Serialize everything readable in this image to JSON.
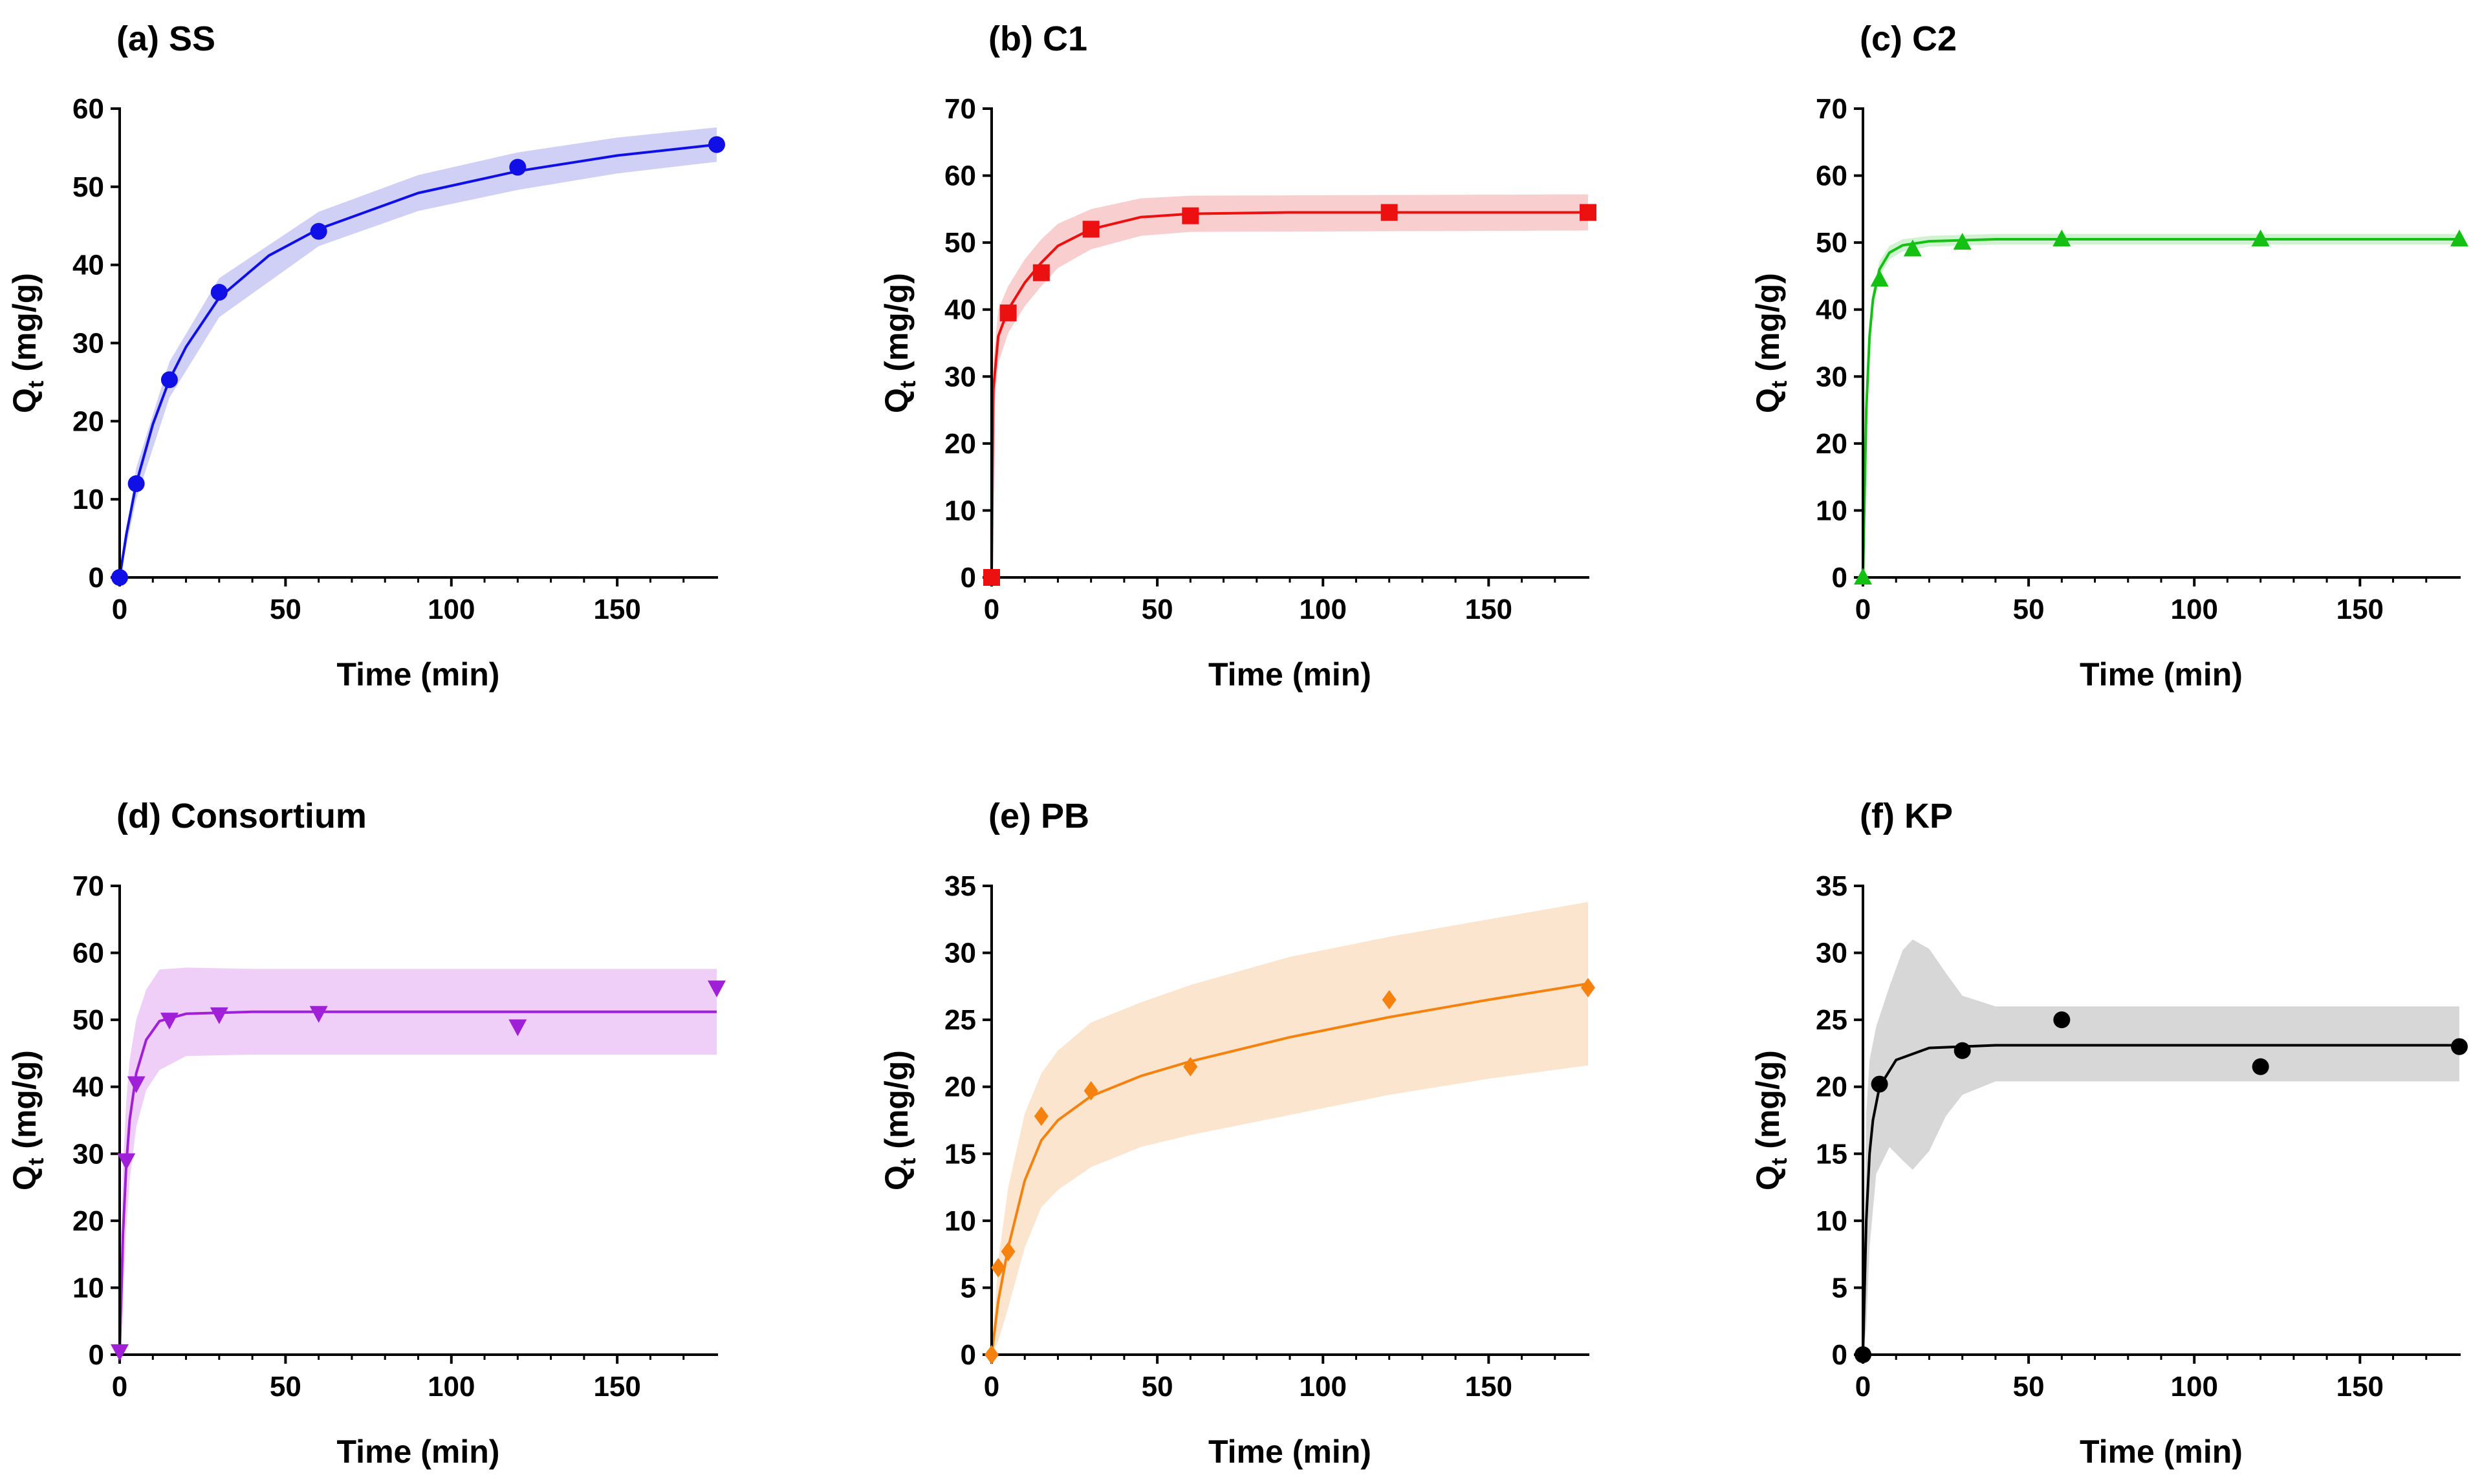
{
  "chart_data": [
    {
      "type": "scatter",
      "title": "(a) SS",
      "xlabel": "Time (min)",
      "ylabel_main": "Q",
      "ylabel_sub": "t",
      "ylabel_unit": "(mg/g)",
      "xlim": [
        0,
        180
      ],
      "ylim": [
        0,
        60
      ],
      "xticks": [
        0,
        50,
        100,
        150
      ],
      "yticks": [
        0,
        10,
        20,
        30,
        40,
        50,
        60
      ],
      "color": "#1010e6",
      "band_color": "#c8c8f6",
      "marker": "circle",
      "points": [
        {
          "x": 0,
          "y": 0
        },
        {
          "x": 5,
          "y": 12.0
        },
        {
          "x": 15,
          "y": 25.3
        },
        {
          "x": 30,
          "y": 36.5
        },
        {
          "x": 60,
          "y": 44.3
        },
        {
          "x": 120,
          "y": 52.5
        },
        {
          "x": 180,
          "y": 55.4
        }
      ],
      "fit": [
        {
          "x": 0,
          "y": 0
        },
        {
          "x": 2,
          "y": 5.5
        },
        {
          "x": 5,
          "y": 12.0
        },
        {
          "x": 10,
          "y": 19.6
        },
        {
          "x": 15,
          "y": 25.3
        },
        {
          "x": 20,
          "y": 29.5
        },
        {
          "x": 30,
          "y": 35.8
        },
        {
          "x": 45,
          "y": 41.2
        },
        {
          "x": 60,
          "y": 44.6
        },
        {
          "x": 90,
          "y": 49.2
        },
        {
          "x": 120,
          "y": 52.0
        },
        {
          "x": 150,
          "y": 54.0
        },
        {
          "x": 180,
          "y": 55.4
        }
      ],
      "band_upper": [
        {
          "x": 0,
          "y": 0
        },
        {
          "x": 5,
          "y": 14.0
        },
        {
          "x": 15,
          "y": 27.6
        },
        {
          "x": 30,
          "y": 38.3
        },
        {
          "x": 60,
          "y": 46.8
        },
        {
          "x": 90,
          "y": 51.5
        },
        {
          "x": 120,
          "y": 54.4
        },
        {
          "x": 150,
          "y": 56.3
        },
        {
          "x": 180,
          "y": 57.6
        }
      ],
      "band_lower": [
        {
          "x": 0,
          "y": 0
        },
        {
          "x": 5,
          "y": 10.0
        },
        {
          "x": 15,
          "y": 23.0
        },
        {
          "x": 30,
          "y": 33.3
        },
        {
          "x": 60,
          "y": 42.4
        },
        {
          "x": 90,
          "y": 46.9
        },
        {
          "x": 120,
          "y": 49.6
        },
        {
          "x": 150,
          "y": 51.7
        },
        {
          "x": 180,
          "y": 53.2
        }
      ]
    },
    {
      "type": "scatter",
      "title": "(b) C1",
      "xlabel": "Time (min)",
      "ylabel_main": "Q",
      "ylabel_sub": "t",
      "ylabel_unit": "(mg/g)",
      "xlim": [
        0,
        180
      ],
      "ylim": [
        0,
        70
      ],
      "xticks": [
        0,
        50,
        100,
        150
      ],
      "yticks": [
        0,
        10,
        20,
        30,
        40,
        50,
        60,
        70
      ],
      "color": "#ec1010",
      "band_color": "#f8c6c6",
      "marker": "square",
      "points": [
        {
          "x": 0,
          "y": 0
        },
        {
          "x": 5,
          "y": 39.5
        },
        {
          "x": 15,
          "y": 45.5
        },
        {
          "x": 30,
          "y": 52.0
        },
        {
          "x": 60,
          "y": 54.0
        },
        {
          "x": 120,
          "y": 54.5
        },
        {
          "x": 180,
          "y": 54.5
        }
      ],
      "fit": [
        {
          "x": 0,
          "y": 0
        },
        {
          "x": 0.5,
          "y": 28.0
        },
        {
          "x": 2,
          "y": 36.0
        },
        {
          "x": 5,
          "y": 40.0
        },
        {
          "x": 10,
          "y": 44.0
        },
        {
          "x": 15,
          "y": 47.0
        },
        {
          "x": 20,
          "y": 49.5
        },
        {
          "x": 30,
          "y": 52.0
        },
        {
          "x": 45,
          "y": 53.8
        },
        {
          "x": 60,
          "y": 54.3
        },
        {
          "x": 90,
          "y": 54.5
        },
        {
          "x": 180,
          "y": 54.5
        }
      ],
      "band_upper": [
        {
          "x": 0,
          "y": 0
        },
        {
          "x": 0.5,
          "y": 32.0
        },
        {
          "x": 2,
          "y": 40.0
        },
        {
          "x": 5,
          "y": 43.5
        },
        {
          "x": 10,
          "y": 47.5
        },
        {
          "x": 15,
          "y": 50.5
        },
        {
          "x": 20,
          "y": 52.8
        },
        {
          "x": 30,
          "y": 55.0
        },
        {
          "x": 45,
          "y": 56.6
        },
        {
          "x": 60,
          "y": 57.0
        },
        {
          "x": 180,
          "y": 57.2
        }
      ],
      "band_lower": [
        {
          "x": 0,
          "y": 0
        },
        {
          "x": 0.5,
          "y": 24.0
        },
        {
          "x": 2,
          "y": 32.0
        },
        {
          "x": 5,
          "y": 36.5
        },
        {
          "x": 10,
          "y": 40.5
        },
        {
          "x": 15,
          "y": 43.5
        },
        {
          "x": 20,
          "y": 46.2
        },
        {
          "x": 30,
          "y": 49.0
        },
        {
          "x": 45,
          "y": 51.0
        },
        {
          "x": 60,
          "y": 51.6
        },
        {
          "x": 180,
          "y": 51.8
        }
      ]
    },
    {
      "type": "scatter",
      "title": "(c) C2",
      "xlabel": "Time (min)",
      "ylabel_main": "Q",
      "ylabel_sub": "t",
      "ylabel_unit": "(mg/g)",
      "xlim": [
        0,
        180
      ],
      "ylim": [
        0,
        70
      ],
      "xticks": [
        0,
        50,
        100,
        150
      ],
      "yticks": [
        0,
        10,
        20,
        30,
        40,
        50,
        60,
        70
      ],
      "color": "#14c014",
      "band_color": "#c8f0c8",
      "marker": "triangle-up",
      "points": [
        {
          "x": 0,
          "y": 0
        },
        {
          "x": 5,
          "y": 44.5
        },
        {
          "x": 15,
          "y": 49.0
        },
        {
          "x": 30,
          "y": 50.0
        },
        {
          "x": 60,
          "y": 50.5
        },
        {
          "x": 120,
          "y": 50.5
        },
        {
          "x": 180,
          "y": 50.5
        }
      ],
      "fit": [
        {
          "x": 0,
          "y": 0
        },
        {
          "x": 1,
          "y": 25.0
        },
        {
          "x": 2,
          "y": 36.0
        },
        {
          "x": 3,
          "y": 41.5
        },
        {
          "x": 5,
          "y": 46.0
        },
        {
          "x": 8,
          "y": 48.5
        },
        {
          "x": 12,
          "y": 49.6
        },
        {
          "x": 20,
          "y": 50.2
        },
        {
          "x": 40,
          "y": 50.5
        },
        {
          "x": 180,
          "y": 50.5
        }
      ],
      "band_upper": [
        {
          "x": 0,
          "y": 0
        },
        {
          "x": 1,
          "y": 26.5
        },
        {
          "x": 2,
          "y": 37.5
        },
        {
          "x": 3,
          "y": 42.8
        },
        {
          "x": 5,
          "y": 47.2
        },
        {
          "x": 8,
          "y": 49.5
        },
        {
          "x": 12,
          "y": 50.5
        },
        {
          "x": 20,
          "y": 51.0
        },
        {
          "x": 40,
          "y": 51.3
        },
        {
          "x": 180,
          "y": 51.3
        }
      ],
      "band_lower": [
        {
          "x": 0,
          "y": 0
        },
        {
          "x": 1,
          "y": 23.5
        },
        {
          "x": 2,
          "y": 34.5
        },
        {
          "x": 3,
          "y": 40.2
        },
        {
          "x": 5,
          "y": 44.8
        },
        {
          "x": 8,
          "y": 47.5
        },
        {
          "x": 12,
          "y": 48.7
        },
        {
          "x": 20,
          "y": 49.4
        },
        {
          "x": 40,
          "y": 49.7
        },
        {
          "x": 180,
          "y": 49.7
        }
      ]
    },
    {
      "type": "scatter",
      "title": "(d) Consortium",
      "xlabel": "Time (min)",
      "ylabel_main": "Q",
      "ylabel_sub": "t",
      "ylabel_unit": "(mg/g)",
      "xlim": [
        0,
        180
      ],
      "ylim": [
        0,
        70
      ],
      "xticks": [
        0,
        50,
        100,
        150
      ],
      "yticks": [
        0,
        10,
        20,
        30,
        40,
        50,
        60,
        70
      ],
      "color": "#a020d8",
      "band_color": "#ecc6f6",
      "marker": "triangle-down",
      "points": [
        {
          "x": 0,
          "y": 0.5
        },
        {
          "x": 2,
          "y": 29.0
        },
        {
          "x": 5,
          "y": 40.5
        },
        {
          "x": 15,
          "y": 50.0
        },
        {
          "x": 30,
          "y": 50.8
        },
        {
          "x": 60,
          "y": 51.0
        },
        {
          "x": 120,
          "y": 49.0
        },
        {
          "x": 180,
          "y": 54.8
        }
      ],
      "fit": [
        {
          "x": 0,
          "y": 0
        },
        {
          "x": 1,
          "y": 18.0
        },
        {
          "x": 2,
          "y": 28.5
        },
        {
          "x": 3,
          "y": 35.0
        },
        {
          "x": 5,
          "y": 42.0
        },
        {
          "x": 8,
          "y": 47.0
        },
        {
          "x": 12,
          "y": 49.8
        },
        {
          "x": 20,
          "y": 50.9
        },
        {
          "x": 40,
          "y": 51.2
        },
        {
          "x": 180,
          "y": 51.2
        }
      ],
      "band_upper": [
        {
          "x": 0,
          "y": 0
        },
        {
          "x": 1,
          "y": 28.0
        },
        {
          "x": 2,
          "y": 38.0
        },
        {
          "x": 3,
          "y": 44.0
        },
        {
          "x": 5,
          "y": 50.0
        },
        {
          "x": 8,
          "y": 54.5
        },
        {
          "x": 12,
          "y": 57.5
        },
        {
          "x": 20,
          "y": 57.8
        },
        {
          "x": 40,
          "y": 57.6
        },
        {
          "x": 180,
          "y": 57.6
        }
      ],
      "band_lower": [
        {
          "x": 0,
          "y": 0
        },
        {
          "x": 1,
          "y": 8.0
        },
        {
          "x": 2,
          "y": 19.0
        },
        {
          "x": 3,
          "y": 26.0
        },
        {
          "x": 5,
          "y": 34.0
        },
        {
          "x": 8,
          "y": 39.5
        },
        {
          "x": 12,
          "y": 42.5
        },
        {
          "x": 20,
          "y": 44.6
        },
        {
          "x": 40,
          "y": 44.8
        },
        {
          "x": 180,
          "y": 44.8
        }
      ]
    },
    {
      "type": "scatter",
      "title": "(e) PB",
      "xlabel": "Time (min)",
      "ylabel_main": "Q",
      "ylabel_sub": "t",
      "ylabel_unit": "(mg/g)",
      "xlim": [
        0,
        180
      ],
      "ylim": [
        0,
        35
      ],
      "xticks": [
        0,
        50,
        100,
        150
      ],
      "yticks": [
        0,
        5,
        10,
        15,
        20,
        25,
        30,
        35
      ],
      "color": "#f5820f",
      "band_color": "#fbe0c6",
      "marker": "diamond",
      "points": [
        {
          "x": 0,
          "y": 0
        },
        {
          "x": 2,
          "y": 6.5
        },
        {
          "x": 5,
          "y": 7.7
        },
        {
          "x": 15,
          "y": 17.8
        },
        {
          "x": 30,
          "y": 19.7
        },
        {
          "x": 60,
          "y": 21.5
        },
        {
          "x": 120,
          "y": 26.5
        },
        {
          "x": 180,
          "y": 27.4
        }
      ],
      "fit": [
        {
          "x": 0,
          "y": 0
        },
        {
          "x": 2,
          "y": 4.0
        },
        {
          "x": 5,
          "y": 8.0
        },
        {
          "x": 10,
          "y": 13.0
        },
        {
          "x": 15,
          "y": 16.0
        },
        {
          "x": 20,
          "y": 17.5
        },
        {
          "x": 30,
          "y": 19.3
        },
        {
          "x": 45,
          "y": 20.8
        },
        {
          "x": 60,
          "y": 21.9
        },
        {
          "x": 90,
          "y": 23.7
        },
        {
          "x": 120,
          "y": 25.2
        },
        {
          "x": 150,
          "y": 26.5
        },
        {
          "x": 180,
          "y": 27.7
        }
      ],
      "band_upper": [
        {
          "x": 0,
          "y": 0
        },
        {
          "x": 2,
          "y": 7.0
        },
        {
          "x": 5,
          "y": 12.5
        },
        {
          "x": 10,
          "y": 18.0
        },
        {
          "x": 15,
          "y": 21.0
        },
        {
          "x": 20,
          "y": 22.7
        },
        {
          "x": 30,
          "y": 24.8
        },
        {
          "x": 45,
          "y": 26.3
        },
        {
          "x": 60,
          "y": 27.6
        },
        {
          "x": 90,
          "y": 29.7
        },
        {
          "x": 120,
          "y": 31.2
        },
        {
          "x": 150,
          "y": 32.5
        },
        {
          "x": 180,
          "y": 33.8
        }
      ],
      "band_lower": [
        {
          "x": 0,
          "y": 0
        },
        {
          "x": 2,
          "y": 1.0
        },
        {
          "x": 5,
          "y": 3.5
        },
        {
          "x": 10,
          "y": 8.0
        },
        {
          "x": 15,
          "y": 11.0
        },
        {
          "x": 20,
          "y": 12.3
        },
        {
          "x": 30,
          "y": 14.0
        },
        {
          "x": 45,
          "y": 15.5
        },
        {
          "x": 60,
          "y": 16.4
        },
        {
          "x": 90,
          "y": 17.9
        },
        {
          "x": 120,
          "y": 19.4
        },
        {
          "x": 150,
          "y": 20.6
        },
        {
          "x": 180,
          "y": 21.6
        }
      ]
    },
    {
      "type": "scatter",
      "title": "(f) KP",
      "xlabel": "Time (min)",
      "ylabel_main": "Q",
      "ylabel_sub": "t",
      "ylabel_unit": "(mg/g)",
      "xlim": [
        0,
        180
      ],
      "ylim": [
        0,
        35
      ],
      "xticks": [
        0,
        50,
        100,
        150
      ],
      "yticks": [
        0,
        5,
        10,
        15,
        20,
        25,
        30,
        35
      ],
      "color": "#000000",
      "band_color": "#d0d0d0",
      "marker": "circle",
      "points": [
        {
          "x": 0,
          "y": 0
        },
        {
          "x": 5,
          "y": 20.2
        },
        {
          "x": 30,
          "y": 22.7
        },
        {
          "x": 60,
          "y": 25.0
        },
        {
          "x": 120,
          "y": 21.5
        },
        {
          "x": 180,
          "y": 23.0
        }
      ],
      "fit": [
        {
          "x": 0,
          "y": 0
        },
        {
          "x": 1,
          "y": 10.0
        },
        {
          "x": 2,
          "y": 15.0
        },
        {
          "x": 3,
          "y": 17.5
        },
        {
          "x": 5,
          "y": 20.0
        },
        {
          "x": 10,
          "y": 22.0
        },
        {
          "x": 20,
          "y": 22.9
        },
        {
          "x": 40,
          "y": 23.1
        },
        {
          "x": 180,
          "y": 23.1
        }
      ],
      "band_upper": [
        {
          "x": 0,
          "y": 0
        },
        {
          "x": 1,
          "y": 18.0
        },
        {
          "x": 2,
          "y": 22.0
        },
        {
          "x": 4,
          "y": 24.5
        },
        {
          "x": 8,
          "y": 27.5
        },
        {
          "x": 12,
          "y": 30.2
        },
        {
          "x": 15,
          "y": 31.0
        },
        {
          "x": 20,
          "y": 30.3
        },
        {
          "x": 25,
          "y": 28.5
        },
        {
          "x": 30,
          "y": 26.8
        },
        {
          "x": 40,
          "y": 26.0
        },
        {
          "x": 180,
          "y": 26.0
        }
      ],
      "band_lower": [
        {
          "x": 0,
          "y": 0
        },
        {
          "x": 1,
          "y": 2.0
        },
        {
          "x": 2,
          "y": 8.0
        },
        {
          "x": 4,
          "y": 13.5
        },
        {
          "x": 8,
          "y": 15.5
        },
        {
          "x": 12,
          "y": 14.5
        },
        {
          "x": 15,
          "y": 13.8
        },
        {
          "x": 20,
          "y": 15.2
        },
        {
          "x": 25,
          "y": 17.8
        },
        {
          "x": 30,
          "y": 19.4
        },
        {
          "x": 40,
          "y": 20.4
        },
        {
          "x": 180,
          "y": 20.4
        }
      ]
    }
  ]
}
